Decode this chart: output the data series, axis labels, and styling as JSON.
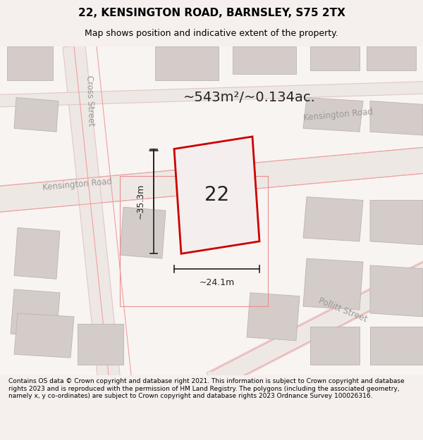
{
  "title": "22, KENSINGTON ROAD, BARNSLEY, S75 2TX",
  "subtitle": "Map shows position and indicative extent of the property.",
  "footer": "Contains OS data © Crown copyright and database right 2021. This information is subject to Crown copyright and database rights 2023 and is reproduced with the permission of HM Land Registry. The polygons (including the associated geometry, namely x, y co-ordinates) are subject to Crown copyright and database rights 2023 Ordnance Survey 100026316.",
  "area_label": "~543m²/~0.134ac.",
  "width_label": "~24.1m",
  "height_label": "~35.3m",
  "number_label": "22",
  "bg_color": "#f5f0ee",
  "map_bg": "#ffffff",
  "road_fill": "#e8e0dc",
  "block_fill": "#d8d0cc",
  "red_line": "#cc0000",
  "dark_line": "#333333",
  "road_label_color": "#888888",
  "street_label_color": "#999999"
}
